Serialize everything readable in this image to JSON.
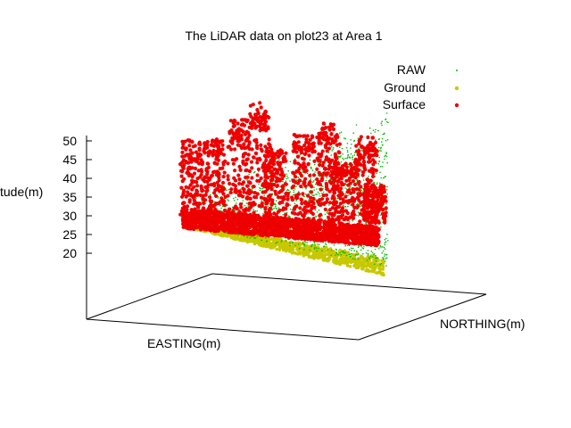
{
  "chart_data": {
    "type": "scatter",
    "title": "The LiDAR data on plot23 at Area 1",
    "xlabel": "EASTING(m)",
    "ylabel": "NORTHING(m)",
    "zlabel": "tude(m)",
    "z_ticks": [
      "20",
      "25",
      "30",
      "35",
      "40",
      "45",
      "50"
    ],
    "z_tick_values": [
      20,
      25,
      30,
      35,
      40,
      45,
      50
    ],
    "zlim": [
      20,
      52
    ],
    "legend_position": "top-right",
    "series": [
      {
        "name": "RAW",
        "color": "#00bb00",
        "marker": "dot",
        "description_z_range": [
          22,
          50
        ]
      },
      {
        "name": "Ground",
        "color": "#c8c800",
        "marker": "dot",
        "description_z_range": [
          20,
          27
        ]
      },
      {
        "name": "Surface",
        "color": "#ee0000",
        "marker": "dot",
        "description_z_range": [
          25,
          52
        ]
      }
    ]
  }
}
